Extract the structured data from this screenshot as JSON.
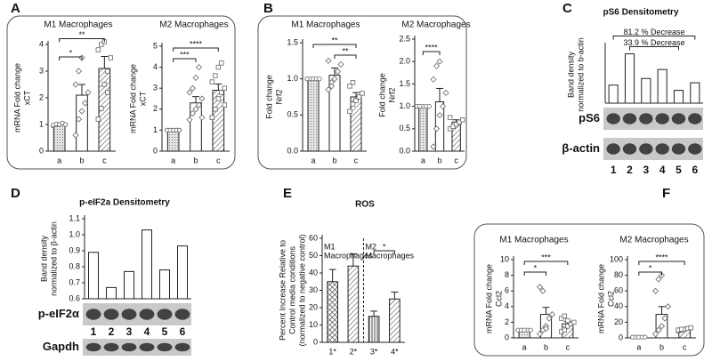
{
  "chart_data": [
    {
      "type": "bar",
      "panel": "A",
      "title": "M1  Macrophages",
      "ylabel": [
        "mRNA Fold change",
        "xCT"
      ],
      "categories": [
        "a",
        "b",
        "c"
      ],
      "values": [
        1.0,
        2.1,
        3.1
      ],
      "errors": [
        0.05,
        0.4,
        0.45
      ],
      "points": [
        [
          0.95,
          1.0,
          1.0,
          1.05,
          1.0,
          0.98,
          1.02,
          1.0
        ],
        [
          0.6,
          1.2,
          1.5,
          1.8,
          2.2,
          2.5,
          3.0,
          3.5
        ],
        [
          1.2,
          1.6,
          2.5,
          3.0,
          3.5,
          3.8,
          4.0,
          4.1,
          2.2
        ]
      ],
      "bar_fills": [
        "dots",
        "plain",
        "hatch"
      ],
      "ylim": [
        0,
        4
      ],
      "yticks": [
        0,
        1,
        2,
        3,
        4
      ],
      "brackets": [
        {
          "label": "*",
          "between": [
            "a",
            "b"
          ]
        },
        {
          "label": "**",
          "between": [
            "a",
            "c"
          ]
        }
      ]
    },
    {
      "type": "bar",
      "title": "M2  Macrophages",
      "ylabel": [
        "mRNA Fold change",
        "xCT"
      ],
      "categories": [
        "a",
        "b",
        "c"
      ],
      "values": [
        1.0,
        2.3,
        2.9
      ],
      "errors": [
        0.05,
        0.3,
        0.3
      ],
      "points": [
        [
          1.0,
          1.0,
          1.0,
          1.0,
          1.0,
          1.0,
          1.0,
          1.0,
          1.0,
          1.0
        ],
        [
          1.5,
          1.8,
          2.0,
          2.2,
          2.5,
          2.8,
          3.0,
          3.5,
          4.0,
          1.6
        ],
        [
          1.6,
          2.0,
          2.5,
          2.8,
          3.0,
          3.3,
          3.6,
          4.0,
          4.2,
          2.2
        ]
      ],
      "bar_fills": [
        "dots",
        "plain",
        "hatch"
      ],
      "ylim": [
        0,
        5
      ],
      "yticks": [
        0,
        1,
        2,
        3,
        4,
        5
      ],
      "brackets": [
        {
          "label": "***",
          "between": [
            "a",
            "b"
          ]
        },
        {
          "label": "****",
          "between": [
            "a",
            "c"
          ]
        }
      ]
    },
    {
      "type": "bar",
      "panel": "B",
      "title": "M1  Macrophages",
      "ylabel": [
        "Fold change",
        "Nrf2"
      ],
      "categories": [
        "a",
        "b",
        "c"
      ],
      "values": [
        1.0,
        1.05,
        0.75
      ],
      "errors": [
        0.02,
        0.1,
        0.06
      ],
      "points": [
        [
          1.0,
          1.0,
          1.0,
          1.0,
          1.0,
          1.0
        ],
        [
          0.85,
          0.95,
          1.0,
          1.1,
          1.2,
          1.25,
          0.9
        ],
        [
          0.55,
          0.65,
          0.7,
          0.75,
          0.8,
          0.9,
          0.95
        ]
      ],
      "bar_fills": [
        "dots",
        "plain",
        "hatch"
      ],
      "ylim": [
        0,
        1.5
      ],
      "yticks": [
        {
          "value": 0,
          "label": "0.0"
        },
        0.5,
        {
          "value": 1,
          "label": "1.0"
        },
        1.5
      ],
      "brackets": [
        {
          "label": "**",
          "between": [
            "b",
            "c"
          ]
        },
        {
          "label": "**",
          "between": [
            "a",
            "c"
          ]
        }
      ]
    },
    {
      "type": "bar",
      "title": "M2  Macrophages",
      "ylabel": [
        "Fold change",
        "Nrf2"
      ],
      "categories": [
        "a",
        "b",
        "c"
      ],
      "values": [
        1.0,
        1.1,
        0.65
      ],
      "errors": [
        0.02,
        0.3,
        0.05
      ],
      "points": [
        [
          1.0,
          1.0,
          1.0,
          1.0,
          1.0,
          1.0,
          1.0
        ],
        [
          0.1,
          0.5,
          0.8,
          1.0,
          1.3,
          1.6,
          1.9,
          2.0
        ],
        [
          0.5,
          0.55,
          0.6,
          0.65,
          0.7,
          0.75
        ]
      ],
      "bar_fills": [
        "dots",
        "plain",
        "hatch"
      ],
      "ylim": [
        0,
        2.5
      ],
      "yticks": [
        {
          "value": 0,
          "label": "0.0"
        },
        0.5,
        {
          "value": 1,
          "label": "1.0"
        },
        1.5,
        {
          "value": 2,
          "label": "2.0"
        },
        2.5
      ],
      "brackets": [
        {
          "label": "****",
          "between": [
            "a",
            "b"
          ]
        }
      ]
    },
    {
      "type": "bar",
      "panel": "C",
      "title": "pS6 Densitometry",
      "ylabel": [
        "Band density",
        "normalized to b-actin"
      ],
      "categories": [
        "1",
        "2",
        "3",
        "4",
        "5",
        "6"
      ],
      "values": [
        0.38,
        1.04,
        0.52,
        0.71,
        0.27,
        0.43
      ],
      "bar_fills": [
        "plain",
        "plain",
        "plain",
        "plain",
        "plain",
        "plain"
      ],
      "ylim": [
        0,
        1.2
      ],
      "blot_labels": [
        "pS6",
        "β-actin"
      ],
      "brackets": [
        {
          "label": "33.9 % Decrease",
          "between": [
            "2",
            "5"
          ]
        },
        {
          "label": "81.2 % Decrease",
          "between": [
            "1",
            "6"
          ]
        }
      ]
    },
    {
      "type": "bar",
      "panel": "D",
      "title": "p-eIF2a Densitometry",
      "ylabel": [
        "Band density",
        "normalized to β-actin"
      ],
      "categories": [
        "1",
        "2",
        "3",
        "4",
        "5",
        "6"
      ],
      "values": [
        0.89,
        0.67,
        0.77,
        1.03,
        0.78,
        0.93
      ],
      "bar_fills": [
        "plain",
        "plain",
        "plain",
        "plain",
        "plain",
        "plain"
      ],
      "ylim": [
        0.6,
        1.1
      ],
      "yticks": [
        0.6,
        0.7,
        0.8,
        0.9,
        {
          "value": 1,
          "label": "1.0"
        },
        1.1
      ],
      "blot_labels": [
        "p-eIF2α",
        "Gapdh"
      ]
    },
    {
      "type": "bar",
      "panel": "E",
      "title": "ROS",
      "ylabel": [
        "Percent Increase Relative to",
        "Control media conditions",
        "(normalized to negative control)"
      ],
      "categories": [
        "1*",
        "2*",
        "3*",
        "4*"
      ],
      "values": [
        35,
        44,
        15,
        25
      ],
      "errors": [
        7,
        7,
        3,
        4
      ],
      "group_labels": [
        [
          "M1",
          "Macrophages"
        ],
        [
          "M2",
          "Macrophages"
        ]
      ],
      "bar_fills": [
        "crosshatch",
        "hatch",
        "vlines",
        "hatch"
      ],
      "ylim": [
        0,
        60
      ],
      "yticks": [
        0,
        10,
        20,
        30,
        40,
        50,
        60
      ],
      "brackets": [
        {
          "label": "*",
          "between": [
            "3*",
            "4*"
          ]
        }
      ]
    },
    {
      "type": "bar",
      "panel": "F",
      "title": "M1  Macrophages",
      "ylabel": [
        "mRNA Fold change",
        "Ccl2"
      ],
      "categories": [
        "a",
        "b",
        "c"
      ],
      "values": [
        1.0,
        3.0,
        1.8
      ],
      "errors": [
        0.1,
        0.9,
        0.3
      ],
      "points": [
        [
          1.0,
          1.0,
          1.0,
          1.0,
          1.0,
          1.0,
          1.0,
          1.0
        ],
        [
          0.5,
          1.0,
          1.5,
          2.5,
          3.0,
          6.5,
          6.0,
          1.2
        ],
        [
          0.8,
          1.0,
          1.5,
          1.8,
          2.0,
          2.5,
          2.8,
          2.2
        ]
      ],
      "bar_fills": [
        "dots",
        "plain",
        "hatch"
      ],
      "ylim": [
        0,
        10
      ],
      "yticks": [
        0,
        2,
        4,
        6,
        8,
        10
      ],
      "brackets": [
        {
          "label": "*",
          "between": [
            "a",
            "b"
          ]
        },
        {
          "label": "***",
          "between": [
            "a",
            "c"
          ]
        }
      ]
    },
    {
      "type": "bar",
      "title": "M2  Macrophages",
      "ylabel": [
        "mRNA Fold change",
        "Ccl2"
      ],
      "categories": [
        "a",
        "b",
        "c"
      ],
      "values": [
        1,
        30,
        11
      ],
      "errors": [
        0.5,
        10,
        1.5
      ],
      "points": [
        [
          1,
          1,
          1,
          1,
          1,
          1
        ],
        [
          5,
          10,
          15,
          25,
          40,
          60,
          75,
          80
        ],
        [
          9,
          10,
          11,
          12,
          13,
          10,
          11
        ]
      ],
      "bar_fills": [
        "dots",
        "plain",
        "hatch"
      ],
      "ylim": [
        0,
        100
      ],
      "yticks": [
        0,
        20,
        40,
        60,
        80,
        100
      ],
      "brackets": [
        {
          "label": "*",
          "between": [
            "a",
            "b"
          ]
        },
        {
          "label": "****",
          "between": [
            "a",
            "c"
          ]
        }
      ]
    }
  ]
}
